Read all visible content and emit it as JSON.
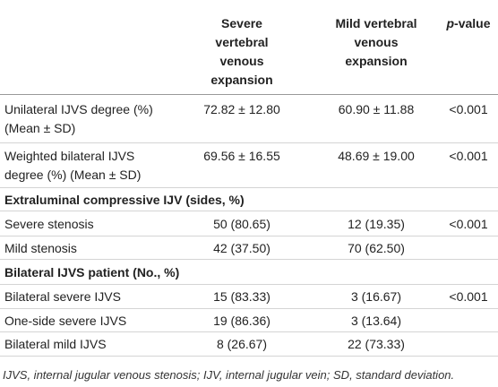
{
  "header": {
    "columns": [
      [
        "Severe",
        "vertebral",
        "venous",
        "expansion"
      ],
      [
        "Mild vertebral",
        "venous",
        "expansion"
      ]
    ],
    "p_value": [
      "p",
      "-value"
    ]
  },
  "rows": [
    {
      "label": [
        "Unilateral IJVS degree (%)",
        "(Mean ± SD)"
      ],
      "cells": [
        "72.82 ± 12.80",
        "60.90 ± 11.88",
        "<0.001"
      ]
    },
    {
      "label": [
        "Weighted bilateral IJVS",
        "degree (%) (Mean ± SD)"
      ],
      "cells": [
        "69.56 ± 16.55",
        "48.69 ± 19.00",
        "<0.001"
      ]
    },
    {
      "section": "Extraluminal compressive IJV (sides, %)"
    },
    {
      "label": [
        "Severe stenosis"
      ],
      "cells": [
        "50 (80.65)",
        "12 (19.35)",
        "<0.001"
      ]
    },
    {
      "label": [
        "Mild stenosis"
      ],
      "cells": [
        "42 (37.50)",
        "70 (62.50)"
      ]
    },
    {
      "section": "Bilateral IJVS patient (No., %)"
    },
    {
      "label": [
        "Bilateral severe IJVS"
      ],
      "cells": [
        "15 (83.33)",
        "3 (16.67)",
        "<0.001"
      ]
    },
    {
      "label": [
        "One-side severe IJVS"
      ],
      "cells": [
        "19 (86.36)",
        "3 (13.64)"
      ]
    },
    {
      "label": [
        "Bilateral mild IJVS"
      ],
      "cells": [
        "8 (26.67)",
        "22 (73.33)"
      ]
    }
  ],
  "footnote": "IJVS, internal jugular venous stenosis; IJV, internal jugular vein; SD, standard deviation."
}
